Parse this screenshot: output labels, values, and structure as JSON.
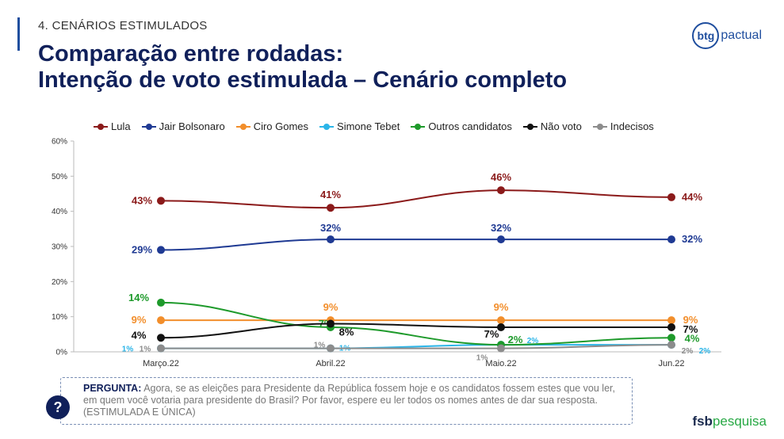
{
  "header": {
    "section": "4. CENÁRIOS ESTIMULADOS",
    "title_line1": "Comparação entre rodadas:",
    "title_line2": "Intenção de voto estimulada – Cenário completo"
  },
  "logos": {
    "btg_mark": "btg",
    "btg_word": "pactual",
    "fsb_a": "fsb",
    "fsb_b": "pesquisa"
  },
  "question": {
    "label": "PERGUNTA:",
    "text": "Agora, se as eleições para Presidente da República fossem hoje e os candidatos fossem estes que vou ler, em quem você votaria para presidente do Brasil? Por favor, espere eu ler todos os nomes antes de dar sua resposta. (ESTIMULADA E ÚNICA)",
    "icon": "question-mark-icon",
    "icon_glyph": "?"
  },
  "chart_data": {
    "type": "line",
    "categories": [
      "Março.22",
      "Abril.22",
      "Maio.22",
      "Jun.22"
    ],
    "ylim": [
      0,
      60
    ],
    "yticks": [
      0,
      10,
      20,
      30,
      40,
      50,
      60
    ],
    "ytick_labels": [
      "0%",
      "10%",
      "20%",
      "30%",
      "40%",
      "50%",
      "60%"
    ],
    "legend_position": "top",
    "grid": false,
    "series": [
      {
        "name": "Lula",
        "color": "#8b1a1a",
        "values": [
          43,
          41,
          46,
          44
        ],
        "labels": [
          "43%",
          "41%",
          "46%",
          "44%"
        ]
      },
      {
        "name": "Jair Bolsonaro",
        "color": "#1f3a93",
        "values": [
          29,
          32,
          32,
          32
        ],
        "labels": [
          "29%",
          "32%",
          "32%",
          "32%"
        ]
      },
      {
        "name": "Ciro Gomes",
        "color": "#f28e2b",
        "values": [
          9,
          9,
          9,
          9
        ],
        "labels": [
          "9%",
          "9%",
          "9%",
          "9%"
        ]
      },
      {
        "name": "Simone Tebet",
        "color": "#2bb5e8",
        "values": [
          1,
          1,
          2,
          2
        ],
        "labels": [
          "1%",
          "1%",
          "2%",
          "2%"
        ]
      },
      {
        "name": "Outros candidatos",
        "color": "#1e9a2b",
        "values": [
          14,
          7,
          2,
          4
        ],
        "labels": [
          "14%",
          "7%",
          "2%",
          "4%"
        ]
      },
      {
        "name": "Não voto",
        "color": "#111111",
        "values": [
          4,
          8,
          7,
          7
        ],
        "labels": [
          "4%",
          "8%",
          "7%",
          "7%"
        ]
      },
      {
        "name": "Indecisos",
        "color": "#8c8c8c",
        "values": [
          1,
          1,
          1,
          2
        ],
        "labels": [
          "1%",
          "1%",
          "1%",
          "2%"
        ]
      }
    ]
  }
}
